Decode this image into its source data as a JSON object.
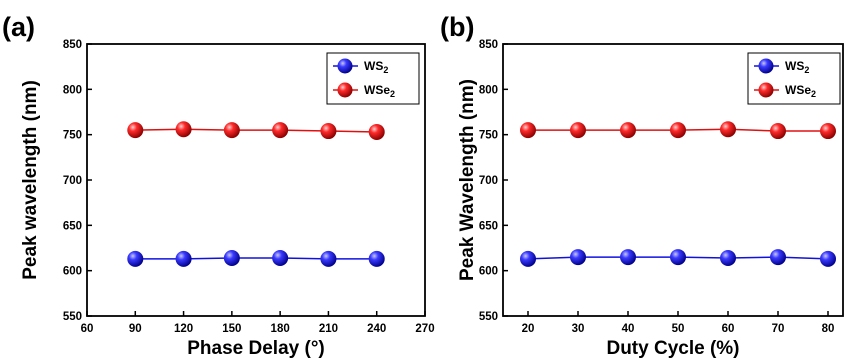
{
  "chart_data": [
    {
      "type": "line",
      "panel_label": "(a)",
      "xlabel": "Phase Delay (°)",
      "ylabel": "Peak wavelength (nm)",
      "xlim": [
        60,
        270
      ],
      "ylim": [
        550,
        850
      ],
      "xticks": [
        60,
        90,
        120,
        150,
        180,
        210,
        240,
        270
      ],
      "yticks": [
        550,
        600,
        650,
        700,
        750,
        800,
        850
      ],
      "x": [
        90,
        120,
        150,
        180,
        210,
        240
      ],
      "legend_position": "top-right",
      "series": [
        {
          "name": "WS",
          "name_sub": "2",
          "color": "#1010e0",
          "marker": "sphere",
          "values": [
            613,
            613,
            614,
            614,
            613,
            613
          ]
        },
        {
          "name": "WSe",
          "name_sub": "2",
          "color": "#e01010",
          "marker": "sphere",
          "values": [
            755,
            756,
            755,
            755,
            754,
            753
          ]
        }
      ]
    },
    {
      "type": "line",
      "panel_label": "(b)",
      "xlabel": "Duty Cycle (%)",
      "ylabel": "Peak Wavelength (nm)",
      "xlim": [
        15,
        83
      ],
      "ylim": [
        550,
        850
      ],
      "xticks": [
        20,
        30,
        40,
        50,
        60,
        70,
        80
      ],
      "yticks": [
        550,
        600,
        650,
        700,
        750,
        800,
        850
      ],
      "x": [
        20,
        30,
        40,
        50,
        60,
        70,
        80
      ],
      "legend_position": "top-right",
      "series": [
        {
          "name": "WS",
          "name_sub": "2",
          "color": "#1010e0",
          "marker": "sphere",
          "values": [
            613,
            615,
            615,
            615,
            614,
            615,
            613
          ]
        },
        {
          "name": "WSe",
          "name_sub": "2",
          "color": "#e01010",
          "marker": "sphere",
          "values": [
            755,
            755,
            755,
            755,
            756,
            754,
            754
          ]
        }
      ]
    }
  ]
}
